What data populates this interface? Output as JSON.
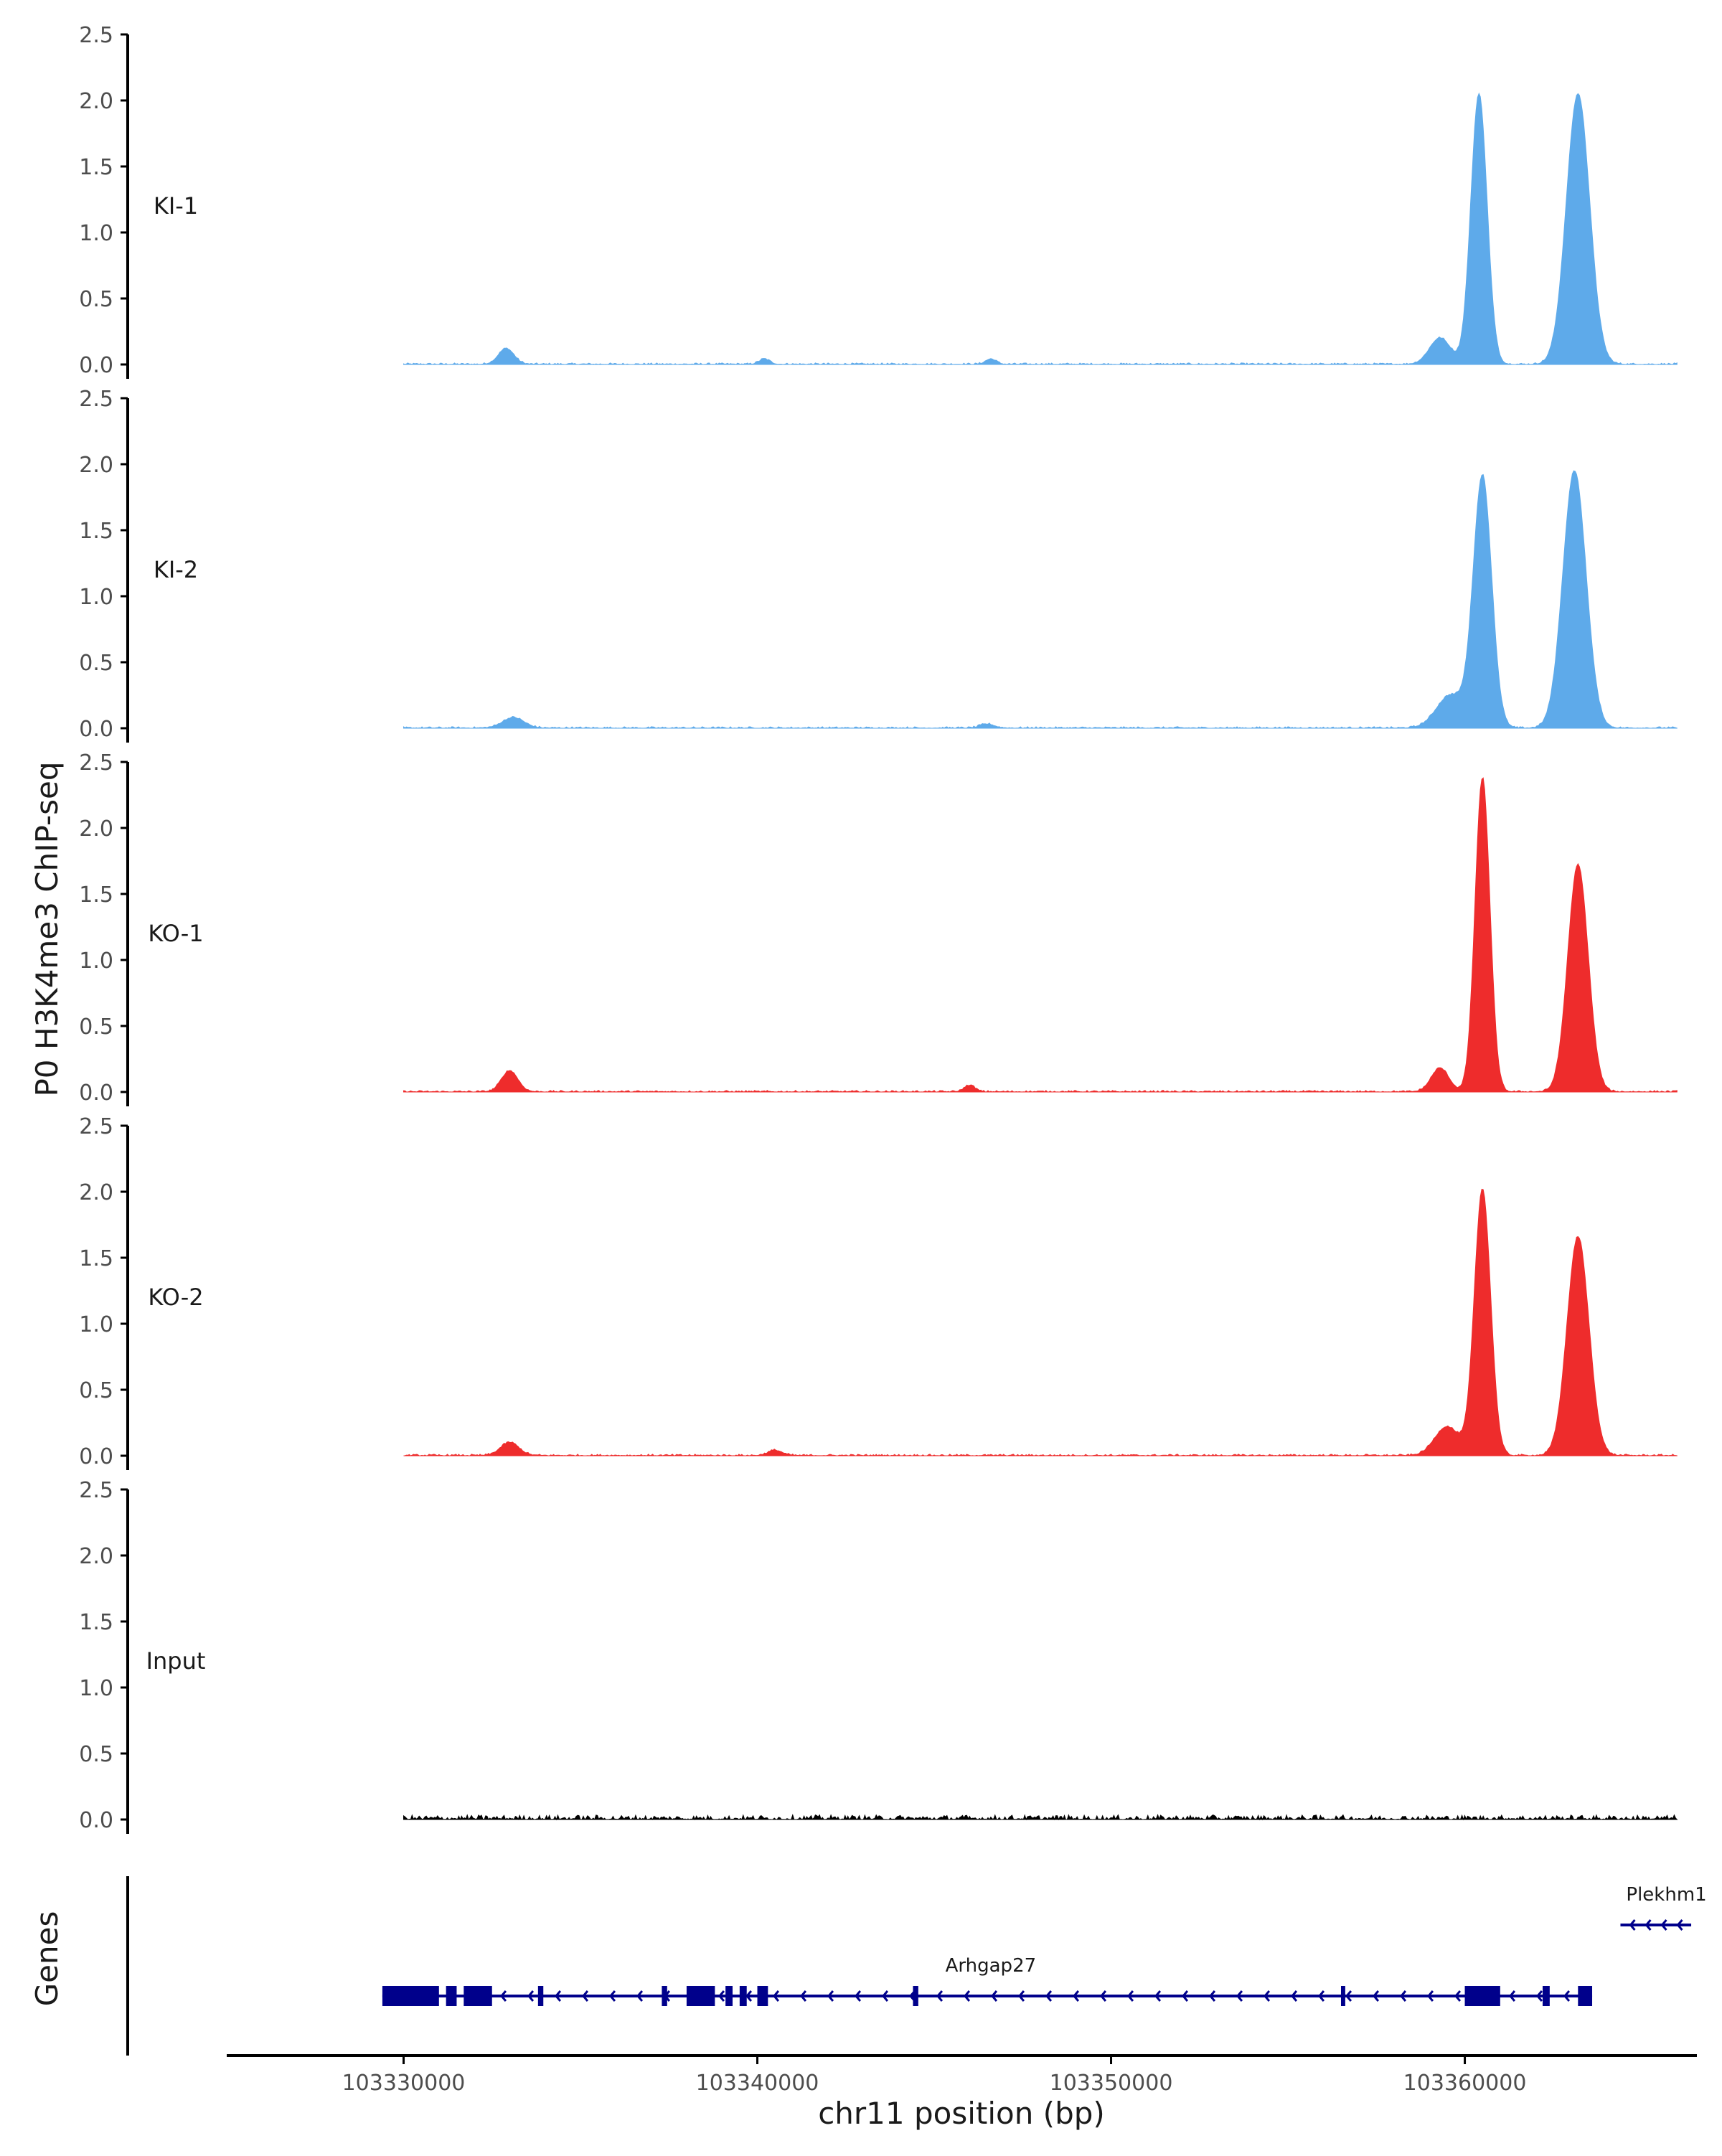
{
  "chart_data": {
    "type": "area",
    "ylabel": "P0 H3K4me3 ChIP-seq",
    "xlabel": "chr11 position (bp)",
    "ylim": [
      0,
      2.5
    ],
    "y_ticks": [
      "0.0",
      "0.5",
      "1.0",
      "1.5",
      "2.0",
      "2.5"
    ],
    "xlim": [
      103325000,
      103366500
    ],
    "x_ticks": [
      {
        "value": 103330000,
        "label": "103330000"
      },
      {
        "value": 103340000,
        "label": "103340000"
      },
      {
        "value": 103350000,
        "label": "103350000"
      },
      {
        "value": 103360000,
        "label": "103360000"
      }
    ],
    "signal_range": [
      103330000,
      103366000
    ],
    "tracks": [
      {
        "name": "KI-1",
        "color": "#5eaaea",
        "peaks": [
          [
            103332900,
            0.12,
            220
          ],
          [
            103340200,
            0.04,
            150
          ],
          [
            103346600,
            0.04,
            150
          ],
          [
            103359300,
            0.2,
            300
          ],
          [
            103360400,
            2.05,
            230
          ],
          [
            103363200,
            2.05,
            330
          ]
        ]
      },
      {
        "name": "KI-2",
        "color": "#5eaaea",
        "peaks": [
          [
            103333100,
            0.08,
            300
          ],
          [
            103346500,
            0.03,
            200
          ],
          [
            103359600,
            0.25,
            400
          ],
          [
            103360500,
            1.9,
            260
          ],
          [
            103363100,
            1.95,
            330
          ]
        ]
      },
      {
        "name": "KO-1",
        "color": "#ee2c2c",
        "peaks": [
          [
            103333000,
            0.16,
            230
          ],
          [
            103346000,
            0.05,
            150
          ],
          [
            103359300,
            0.18,
            250
          ],
          [
            103360500,
            2.38,
            210
          ],
          [
            103363200,
            1.72,
            290
          ]
        ]
      },
      {
        "name": "KO-2",
        "color": "#ee2c2c",
        "peaks": [
          [
            103333000,
            0.1,
            260
          ],
          [
            103340500,
            0.04,
            200
          ],
          [
            103359500,
            0.22,
            350
          ],
          [
            103360500,
            2.02,
            230
          ],
          [
            103363200,
            1.66,
            310
          ]
        ]
      },
      {
        "name": "Input",
        "color": "#000000",
        "peaks": []
      }
    ],
    "genes_label": "Genes",
    "genes": [
      {
        "name": "Arhgap27",
        "strand": "-",
        "start": 103329400,
        "end": 103363600,
        "label_x": 103346600,
        "exons": [
          [
            103329400,
            103331000
          ],
          [
            103331200,
            103331500
          ],
          [
            103331700,
            103332500
          ],
          [
            103333800,
            103333950
          ],
          [
            103337300,
            103337450
          ],
          [
            103338000,
            103338800
          ],
          [
            103339100,
            103339300
          ],
          [
            103339500,
            103339700
          ],
          [
            103340000,
            103340300
          ],
          [
            103344400,
            103344550
          ],
          [
            103356500,
            103356620
          ],
          [
            103360000,
            103361000
          ],
          [
            103362200,
            103362400
          ],
          [
            103363200,
            103363600
          ]
        ]
      },
      {
        "name": "Plekhm1",
        "strand": "-",
        "start": 103364400,
        "end": 103366400,
        "label_x": 103365700,
        "exons": []
      }
    ]
  }
}
